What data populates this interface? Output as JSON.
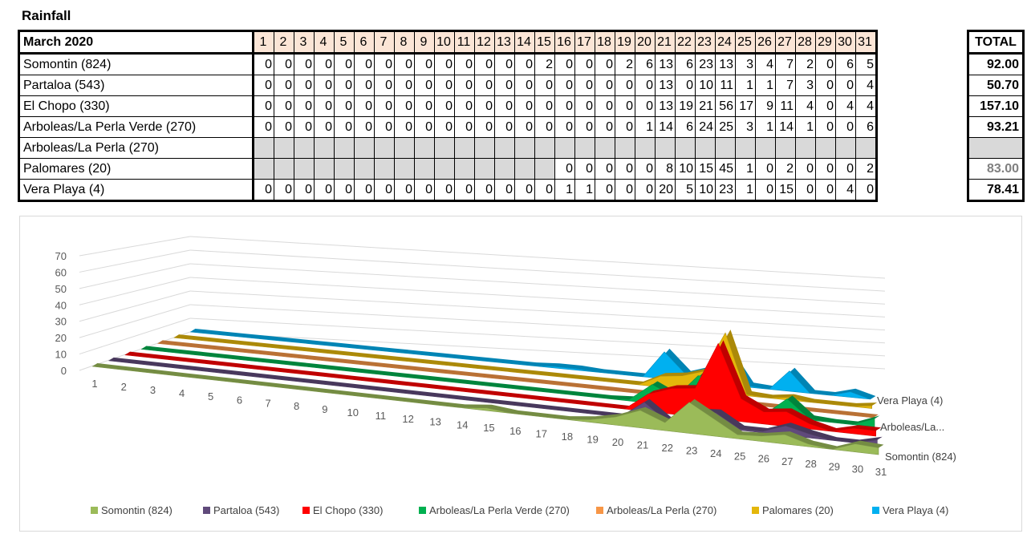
{
  "title": "Rainfall",
  "table": {
    "header_label": "March 2020",
    "days": [
      "1",
      "2",
      "3",
      "4",
      "5",
      "6",
      "7",
      "8",
      "9",
      "10",
      "11",
      "12",
      "13",
      "14",
      "15",
      "16",
      "17",
      "18",
      "19",
      "20",
      "21",
      "22",
      "23",
      "24",
      "25",
      "26",
      "27",
      "28",
      "29",
      "30",
      "31"
    ],
    "total_label": "TOTAL",
    "rows": [
      {
        "name": "Somontin (824)",
        "values": [
          "0",
          "0",
          "0",
          "0",
          "0",
          "0",
          "0",
          "0",
          "0",
          "0",
          "0",
          "0",
          "0",
          "0",
          "2",
          "0",
          "0",
          "0",
          "2",
          "6",
          "13",
          "6",
          "23",
          "13",
          "3",
          "4",
          "7",
          "2",
          "0",
          "6",
          "5"
        ],
        "total": "92.00"
      },
      {
        "name": "Partaloa (543)",
        "values": [
          "0",
          "0",
          "0",
          "0",
          "0",
          "0",
          "0",
          "0",
          "0",
          "0",
          "0",
          "0",
          "0",
          "0",
          "0",
          "0",
          "0",
          "0",
          "0",
          "0",
          "13",
          "0",
          "10",
          "11",
          "1",
          "1",
          "7",
          "3",
          "0",
          "0",
          "4"
        ],
        "total": "50.70"
      },
      {
        "name": "El Chopo (330)",
        "values": [
          "0",
          "0",
          "0",
          "0",
          "0",
          "0",
          "0",
          "0",
          "0",
          "0",
          "0",
          "0",
          "0",
          "0",
          "0",
          "0",
          "0",
          "0",
          "0",
          "0",
          "13",
          "19",
          "21",
          "56",
          "17",
          "9",
          "11",
          "4",
          "0",
          "4",
          "4"
        ],
        "total": "157.10"
      },
      {
        "name": "Arboleas/La Perla Verde (270)",
        "values": [
          "0",
          "0",
          "0",
          "0",
          "0",
          "0",
          "0",
          "0",
          "0",
          "0",
          "0",
          "0",
          "0",
          "0",
          "0",
          "0",
          "0",
          "0",
          "0",
          "1",
          "14",
          "6",
          "24",
          "25",
          "3",
          "1",
          "14",
          "1",
          "0",
          "0",
          "6"
        ],
        "total": "93.21"
      },
      {
        "name": "Arboleas/La Perla (270)",
        "values": [
          "",
          "",
          "",
          "",
          "",
          "",
          "",
          "",
          "",
          "",
          "",
          "",
          "",
          "",
          "",
          "",
          "",
          "",
          "",
          "",
          "",
          "",
          "",
          "",
          "",
          "",
          "",
          "",
          "",
          "",
          ""
        ],
        "total": ""
      },
      {
        "name": "Palomares (20)",
        "values": [
          "",
          "",
          "",
          "",
          "",
          "",
          "",
          "",
          "",
          "",
          "",
          "",
          "",
          "",
          "",
          "0",
          "0",
          "0",
          "0",
          "0",
          "8",
          "10",
          "15",
          "45",
          "1",
          "0",
          "2",
          "0",
          "0",
          "0",
          "2"
        ],
        "total": "83.00"
      },
      {
        "name": "Vera Playa (4)",
        "values": [
          "0",
          "0",
          "0",
          "0",
          "0",
          "0",
          "0",
          "0",
          "0",
          "0",
          "0",
          "0",
          "0",
          "0",
          "0",
          "1",
          "1",
          "0",
          "0",
          "0",
          "20",
          "5",
          "10",
          "23",
          "1",
          "0",
          "15",
          "0",
          "0",
          "4",
          "0"
        ],
        "total": "78.41"
      }
    ]
  },
  "chart_data": {
    "type": "area",
    "subtype": "3d-area",
    "x": [
      "1",
      "2",
      "3",
      "4",
      "5",
      "6",
      "7",
      "8",
      "9",
      "10",
      "11",
      "12",
      "13",
      "14",
      "15",
      "16",
      "17",
      "18",
      "19",
      "20",
      "21",
      "22",
      "23",
      "24",
      "25",
      "26",
      "27",
      "28",
      "29",
      "30",
      "31"
    ],
    "y_ticks": [
      "0",
      "10",
      "20",
      "30",
      "40",
      "50",
      "60",
      "70"
    ],
    "ylim": [
      0,
      70
    ],
    "grid": true,
    "legend_position": "bottom",
    "series_axis_labels": [
      "Somontin (824)",
      "Arboleas/La...",
      "Vera Playa (4)"
    ],
    "series": [
      {
        "name": "Somontin (824)",
        "color": "#9bbb59",
        "values": [
          0,
          0,
          0,
          0,
          0,
          0,
          0,
          0,
          0,
          0,
          0,
          0,
          0,
          0,
          2,
          0,
          0,
          0,
          2,
          6,
          13,
          6,
          23,
          13,
          3,
          4,
          7,
          2,
          0,
          6,
          5
        ]
      },
      {
        "name": "Partaloa (543)",
        "color": "#604a7b",
        "values": [
          0,
          0,
          0,
          0,
          0,
          0,
          0,
          0,
          0,
          0,
          0,
          0,
          0,
          0,
          0,
          0,
          0,
          0,
          0,
          0,
          13,
          0,
          10,
          11,
          1,
          1,
          7,
          3,
          0,
          0,
          4
        ]
      },
      {
        "name": "El Chopo (330)",
        "color": "#ff0000",
        "values": [
          0,
          0,
          0,
          0,
          0,
          0,
          0,
          0,
          0,
          0,
          0,
          0,
          0,
          0,
          0,
          0,
          0,
          0,
          0,
          0,
          13,
          19,
          21,
          56,
          17,
          9,
          11,
          4,
          0,
          4,
          4
        ]
      },
      {
        "name": "Arboleas/La Perla Verde (270)",
        "color": "#00b050",
        "values": [
          0,
          0,
          0,
          0,
          0,
          0,
          0,
          0,
          0,
          0,
          0,
          0,
          0,
          0,
          0,
          0,
          0,
          0,
          0,
          1,
          14,
          6,
          24,
          25,
          3,
          1,
          14,
          1,
          0,
          0,
          6
        ]
      },
      {
        "name": "Arboleas/La Perla (270)",
        "color": "#f79646",
        "values": [
          0,
          0,
          0,
          0,
          0,
          0,
          0,
          0,
          0,
          0,
          0,
          0,
          0,
          0,
          0,
          0,
          0,
          0,
          0,
          0,
          0,
          0,
          0,
          0,
          0,
          0,
          0,
          0,
          0,
          0,
          0
        ]
      },
      {
        "name": "Palomares (20)",
        "color": "#e4b70b",
        "values": [
          0,
          0,
          0,
          0,
          0,
          0,
          0,
          0,
          0,
          0,
          0,
          0,
          0,
          0,
          0,
          0,
          0,
          0,
          0,
          0,
          8,
          10,
          15,
          45,
          1,
          0,
          2,
          0,
          0,
          0,
          2
        ]
      },
      {
        "name": "Vera Playa (4)",
        "color": "#00b0f0",
        "values": [
          0,
          0,
          0,
          0,
          0,
          0,
          0,
          0,
          0,
          0,
          0,
          0,
          0,
          0,
          0,
          1,
          1,
          0,
          0,
          0,
          20,
          5,
          10,
          23,
          1,
          0,
          15,
          0,
          0,
          4,
          0
        ]
      }
    ]
  }
}
